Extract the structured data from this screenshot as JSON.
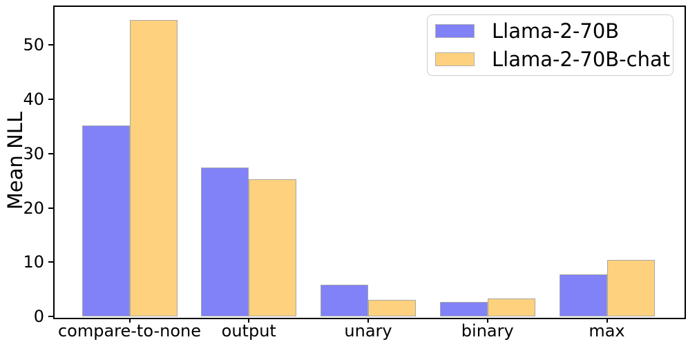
{
  "chart_data": {
    "type": "bar",
    "title": "",
    "xlabel": "",
    "ylabel": "Mean NLL",
    "categories": [
      "compare-to-none",
      "output",
      "unary",
      "binary",
      "max"
    ],
    "series": [
      {
        "name": "Llama-2-70B",
        "color": "#8181f8",
        "values": [
          35.2,
          27.4,
          5.8,
          2.7,
          7.8
        ]
      },
      {
        "name": "Llama-2-70B-chat",
        "color": "#fdd17e",
        "values": [
          54.6,
          25.3,
          3.1,
          3.3,
          10.4
        ]
      }
    ],
    "yticks": [
      0,
      10,
      20,
      30,
      40,
      50
    ],
    "ylim": [
      0,
      57.3
    ],
    "bar_edge_color": "#a6a6a6",
    "legend_position": "upper right",
    "grid": false
  }
}
